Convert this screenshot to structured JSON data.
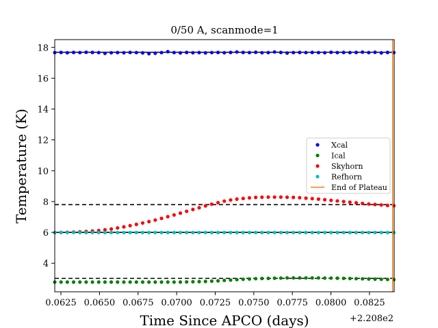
{
  "chart_data": {
    "type": "scatter",
    "title": "0/50 A, scanmode=1",
    "xlabel": "Time Since APCO (days)",
    "ylabel": "Temperature (K)",
    "x_offset_label": "+2.208e2",
    "xlim": [
      220.8621,
      220.8841
    ],
    "ylim": [
      2.15,
      18.5
    ],
    "xticks": [
      220.8625,
      220.865,
      220.8675,
      220.87,
      220.8725,
      220.875,
      220.8775,
      220.88,
      220.8825
    ],
    "xtick_labels": [
      "0.0625",
      "0.0650",
      "0.0675",
      "0.0700",
      "0.0725",
      "0.0750",
      "0.0775",
      "0.0800",
      "0.0825"
    ],
    "yticks": [
      4,
      6,
      8,
      10,
      12,
      14,
      16,
      18
    ],
    "ytick_labels": [
      "4",
      "6",
      "8",
      "10",
      "12",
      "14",
      "16",
      "18"
    ],
    "grid": false,
    "legend_position": "center-right",
    "x_start": 220.8621,
    "x_step": 0.000407,
    "series": [
      {
        "name": "Xcal",
        "color": "#0000ff",
        "marker": "dot",
        "values": [
          17.66,
          17.67,
          17.65,
          17.67,
          17.66,
          17.68,
          17.67,
          17.66,
          17.61,
          17.65,
          17.66,
          17.65,
          17.67,
          17.66,
          17.64,
          17.59,
          17.62,
          17.66,
          17.72,
          17.66,
          17.64,
          17.67,
          17.65,
          17.66,
          17.64,
          17.66,
          17.67,
          17.65,
          17.67,
          17.7,
          17.67,
          17.66,
          17.68,
          17.65,
          17.66,
          17.7,
          17.67,
          17.63,
          17.66,
          17.67,
          17.66,
          17.67,
          17.66,
          17.65,
          17.68,
          17.66,
          17.67,
          17.66,
          17.67,
          17.69,
          17.66,
          17.68,
          17.64,
          17.67,
          17.66
        ]
      },
      {
        "name": "Ical",
        "color": "#008000",
        "marker": "dot",
        "values": [
          2.78,
          2.78,
          2.78,
          2.78,
          2.78,
          2.78,
          2.78,
          2.78,
          2.78,
          2.78,
          2.78,
          2.78,
          2.78,
          2.78,
          2.78,
          2.78,
          2.78,
          2.78,
          2.78,
          2.78,
          2.78,
          2.79,
          2.8,
          2.81,
          2.82,
          2.84,
          2.86,
          2.89,
          2.91,
          2.94,
          2.96,
          2.98,
          3.0,
          3.01,
          3.02,
          3.03,
          3.04,
          3.05,
          3.05,
          3.05,
          3.05,
          3.05,
          3.05,
          3.04,
          3.04,
          3.03,
          3.02,
          3.01,
          3.0,
          2.99,
          2.98,
          2.97,
          2.96,
          2.95,
          2.94
        ]
      },
      {
        "name": "Skyhorn",
        "color": "#ff0000",
        "marker": "dot",
        "values": [
          5.99,
          6.0,
          6.01,
          6.02,
          6.04,
          6.06,
          6.09,
          6.12,
          6.17,
          6.22,
          6.29,
          6.36,
          6.44,
          6.52,
          6.61,
          6.7,
          6.8,
          6.91,
          7.02,
          7.13,
          7.25,
          7.37,
          7.49,
          7.6,
          7.72,
          7.83,
          7.93,
          8.03,
          8.1,
          8.16,
          8.2,
          8.24,
          8.27,
          8.28,
          8.29,
          8.29,
          8.29,
          8.28,
          8.27,
          8.25,
          8.22,
          8.19,
          8.16,
          8.12,
          8.08,
          8.04,
          8.0,
          7.96,
          7.92,
          7.88,
          7.84,
          7.81,
          7.78,
          7.75,
          7.73
        ]
      },
      {
        "name": "Refhorn",
        "color": "#00bfbf",
        "marker": "dot",
        "values": [
          5.99,
          5.99,
          5.99,
          5.99,
          5.99,
          5.99,
          5.99,
          5.99,
          5.99,
          5.99,
          5.99,
          5.99,
          5.99,
          5.99,
          5.99,
          5.99,
          5.99,
          5.99,
          5.99,
          5.99,
          5.99,
          5.99,
          5.99,
          5.99,
          5.99,
          5.99,
          5.99,
          5.99,
          5.99,
          5.99,
          5.99,
          5.99,
          5.99,
          5.99,
          5.99,
          5.99,
          5.99,
          5.99,
          5.99,
          5.99,
          5.99,
          5.99,
          5.99,
          5.99,
          5.99,
          5.99,
          5.99,
          5.99,
          5.99,
          5.99,
          5.99,
          5.99,
          5.99,
          5.99,
          5.99
        ]
      },
      {
        "name": "End of Plateau",
        "color": "#ff7f0e",
        "marker": "line",
        "x": 220.884
      }
    ],
    "reference_lines": [
      {
        "y": 17.68,
        "color": "#000000",
        "style": "solid"
      },
      {
        "y": 7.8,
        "color": "#000000",
        "style": "dashed"
      },
      {
        "y": 6.0,
        "color": "#000000",
        "style": "solid"
      },
      {
        "y": 3.02,
        "color": "#000000",
        "style": "dashed"
      }
    ]
  }
}
